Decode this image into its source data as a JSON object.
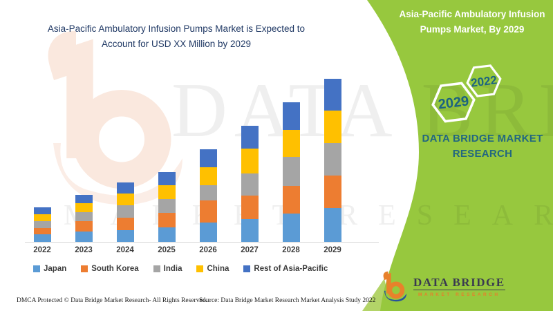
{
  "header": {
    "title_lines": [
      "Asia-Pacific Ambulatory Infusion Pumps Market is Expected to",
      "Account for USD XX Million by 2029"
    ]
  },
  "side_panel": {
    "title_lines": [
      "Asia-Pacific Ambulatory Infusion",
      "Pumps Market, By 2029"
    ],
    "hexagon_large": "2029",
    "hexagon_small": "2022",
    "brand_lines": [
      "DATA BRIDGE MARKET",
      "RESEARCH"
    ]
  },
  "logo": {
    "name": "DATA BRIDGE",
    "subtitle": "MARKET RESEARCH"
  },
  "watermark": {
    "row1": "DATA BRIDGE",
    "row2": "MARKET RESEARCH"
  },
  "footer": {
    "dmca": "DMCA Protected © Data Bridge Market Research- All Rights Reserved.",
    "source": "Source: Data Bridge Market Research Market Analysis Study 2022"
  },
  "colors": {
    "panel_green": "#97C83E",
    "panel_green_light_wedge": "#B3D468",
    "title_navy": "#1F3864",
    "teal_text": "#1C6380",
    "axis_line": "#D9D9D9",
    "label_gray": "#3C3C3C",
    "logo_navy": "#3A3A50",
    "logo_orange": "#E8812B",
    "logo_blue": "#27539B",
    "watermark_peach": "#FAE8DE"
  },
  "chart_data": {
    "type": "bar",
    "stacked": true,
    "title": "Asia-Pacific Ambulatory Infusion Pumps Market is Expected to Account for USD XX Million by 2029",
    "categories": [
      "2022",
      "2023",
      "2024",
      "2025",
      "2026",
      "2027",
      "2028",
      "2029"
    ],
    "series": [
      {
        "name": "Japan",
        "color": "#5B9BD5",
        "values": [
          11,
          15,
          17,
          21,
          28,
          33,
          41,
          49
        ]
      },
      {
        "name": "South Korea",
        "color": "#ED7D31",
        "values": [
          9,
          15,
          18,
          21,
          32,
          34,
          40,
          47
        ]
      },
      {
        "name": "India",
        "color": "#A5A5A5",
        "values": [
          10,
          13,
          18,
          20,
          22,
          32,
          42,
          47
        ]
      },
      {
        "name": "China",
        "color": "#FFC000",
        "values": [
          10,
          13,
          17,
          20,
          26,
          36,
          39,
          47
        ]
      },
      {
        "name": "Rest of Asia-Pacific",
        "color": "#4472C4",
        "values": [
          10,
          12,
          16,
          19,
          26,
          33,
          40,
          46
        ]
      }
    ],
    "totals": [
      50,
      68,
      86,
      101,
      134,
      168,
      202,
      236
    ],
    "value_note": "No value axis shown; values are relative units estimated from bar heights (actual USD values undisclosed as XX Million)",
    "xlabel": "",
    "ylabel": "",
    "y_axis_visible": false,
    "grid": false,
    "legend_position": "bottom"
  }
}
